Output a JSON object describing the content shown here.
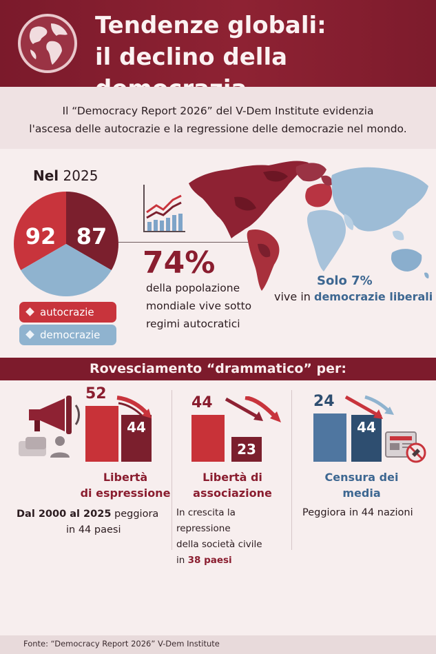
{
  "header": {
    "title_line1": "Tendenze globali:",
    "title_line2": "il declino della democrazia"
  },
  "intro": {
    "line1": "Il “Democracy Report 2026” del V-Dem Institute evidenzia",
    "line2": "l'ascesa delle autocrazie e la regressione delle democrazie nel mondo."
  },
  "overview": {
    "year_bold": "Nel",
    "year": "2025",
    "autocracies_value": "92",
    "democracies_value": "87",
    "legend_autocracies": "autocrazie",
    "legend_democracies": "democrazie",
    "percent": "74%",
    "percent_desc_line1": "della popolazione",
    "percent_desc_line2": "mondiale vive sotto",
    "percent_desc_line3": "regimi autocratici",
    "liberal_head": "Solo 7%",
    "liberal_pre": "vive in ",
    "liberal_bold": "democrazie liberali"
  },
  "banner": {
    "label": "Rovesciamento “drammatico” per:"
  },
  "chart_data": {
    "type": "bar",
    "title": "Rovesciamento “drammatico” per:",
    "panels": [
      {
        "name": "Libertà di espressione",
        "values": [
          52,
          44
        ],
        "desc_bold": "Dal 2000 al 2025",
        "desc_rest1": " peggiora",
        "desc_line2": "in 44 paesi"
      },
      {
        "name": "Libertà di associazione",
        "values": [
          44,
          23
        ],
        "desc_line1": "In crescita la repressione",
        "desc_line2": "della società civile",
        "desc_pre3": "in ",
        "desc_bold3": "38 paesi"
      },
      {
        "name": "Censura dei media",
        "values": [
          24,
          44
        ],
        "desc_line1": "Peggiora in 44 nazioni"
      }
    ],
    "colors": {
      "red": "#c83238",
      "dark_red": "#7b1f2d",
      "blue": "#4f76a0",
      "dark_blue": "#2e4e70"
    }
  },
  "columns": {
    "c1": {
      "title_line1": "Libertà",
      "title_line2": "di espressione"
    },
    "c2": {
      "title_line1": "Libertà di",
      "title_line2": "associazione"
    },
    "c3": {
      "title_line1": "Censura dei",
      "title_line2": "media"
    }
  },
  "footer": {
    "source": "Fonte: “Democracy Report 2026”  V-Dem Institute"
  },
  "icons": [
    "globe-icon",
    "trend-chart-icon",
    "megaphone-icon",
    "chat-person-icon",
    "newspaper-banned-icon",
    "arrow-down-icon"
  ],
  "colors": {
    "header": "#7d1b2c",
    "autocracy": "#c8343c",
    "democracy": "#8fb3cf",
    "accent_blue": "#3d6791"
  }
}
